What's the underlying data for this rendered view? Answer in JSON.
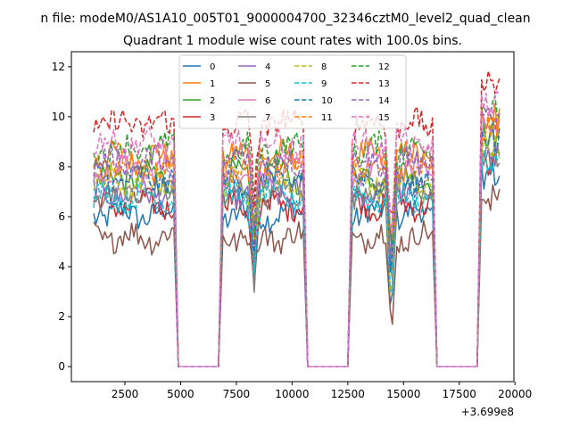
{
  "figure": {
    "suptitle": "n file: modeM0/AS1A10_005T01_9000004700_32346cztM0_level2_quad_clean",
    "title": "Quadrant 1 module wise count rates with 100.0s bins.",
    "offset_label": "+3.699e8"
  },
  "chart_data": {
    "type": "line",
    "title": "Quadrant 1 module wise count rates with 100.0s bins.",
    "xlabel": "",
    "ylabel": "",
    "x_offset": 369900000,
    "xlim": [
      100,
      19950
    ],
    "ylim": [
      -0.6,
      12.6
    ],
    "xticks": [
      2500,
      5000,
      7500,
      10000,
      12500,
      15000,
      17500,
      20000
    ],
    "xtick_labels": [
      "2500",
      "5000",
      "7500",
      "10000",
      "12500",
      "15000",
      "17500",
      "20000"
    ],
    "yticks": [
      0,
      2,
      4,
      6,
      8,
      10,
      12
    ],
    "ytick_labels": [
      "0",
      "2",
      "4",
      "6",
      "8",
      "10",
      "12"
    ],
    "legend_position": "upper-center",
    "legend_columns": 4,
    "active_segments": [
      [
        1100,
        4700
      ],
      [
        6900,
        10500
      ],
      [
        12700,
        16300
      ],
      [
        18500,
        19300
      ]
    ],
    "active_segment_features": [
      {
        "drop_at": null
      },
      {
        "drop_at": 8300,
        "drop_depth": 3.5
      },
      {
        "drop_at": 14450,
        "drop_depth": 5.0
      },
      {
        "drop_at": null
      }
    ],
    "zero_segments": [
      [
        4900,
        6700
      ],
      [
        10700,
        12500
      ],
      [
        16500,
        18300
      ]
    ],
    "series": [
      {
        "name": "0",
        "color": "#1f77b4",
        "dash": "solid",
        "level": 6.1
      },
      {
        "name": "1",
        "color": "#ff7f0e",
        "dash": "solid",
        "level": 8.4
      },
      {
        "name": "2",
        "color": "#2ca02c",
        "dash": "solid",
        "level": 7.6
      },
      {
        "name": "3",
        "color": "#d62728",
        "dash": "solid",
        "level": 6.5
      },
      {
        "name": "4",
        "color": "#9467bd",
        "dash": "solid",
        "level": 7.0
      },
      {
        "name": "5",
        "color": "#8c564b",
        "dash": "solid",
        "level": 5.2
      },
      {
        "name": "6",
        "color": "#e377c2",
        "dash": "solid",
        "level": 7.8
      },
      {
        "name": "7",
        "color": "#7f7f7f",
        "dash": "solid",
        "level": 6.9
      },
      {
        "name": "8",
        "color": "#bcbd22",
        "dash": "dashed",
        "level": 7.3
      },
      {
        "name": "9",
        "color": "#17becf",
        "dash": "dashed",
        "level": 6.8
      },
      {
        "name": "10",
        "color": "#1f77b4",
        "dash": "dashed",
        "level": 7.5
      },
      {
        "name": "11",
        "color": "#ff7f0e",
        "dash": "dashed",
        "level": 8.0
      },
      {
        "name": "12",
        "color": "#2ca02c",
        "dash": "dashed",
        "level": 8.7
      },
      {
        "name": "13",
        "color": "#d62728",
        "dash": "dashed",
        "level": 9.7
      },
      {
        "name": "14",
        "color": "#9467bd",
        "dash": "dashed",
        "level": 8.2
      },
      {
        "name": "15",
        "color": "#e377c2",
        "dash": "dashed",
        "level": 8.9
      }
    ]
  }
}
